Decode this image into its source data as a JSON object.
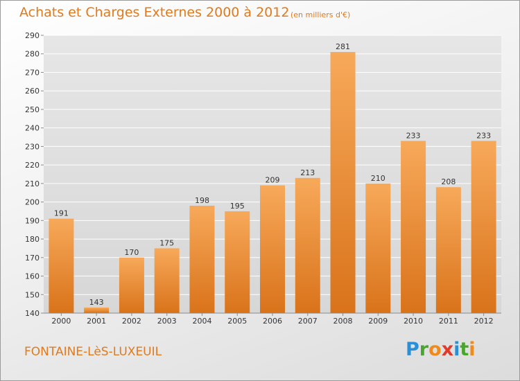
{
  "title": "Achats et Charges Externes 2000 à 2012",
  "subtitle": "(en milliers d'€)",
  "town": "FONTAINE-LèS-LUXEUIL",
  "logo": {
    "text": "Proxiti",
    "letters": [
      {
        "ch": "P",
        "color": "#2a8fd6"
      },
      {
        "ch": "r",
        "color": "#4aa52e"
      },
      {
        "ch": "o",
        "color": "#f08a1a"
      },
      {
        "ch": "x",
        "color": "#e03a2a"
      },
      {
        "ch": "i",
        "color": "#2a8fd6"
      },
      {
        "ch": "t",
        "color": "#4aa52e"
      },
      {
        "ch": "i",
        "color": "#f08a1a"
      }
    ]
  },
  "colors": {
    "accent": "#e07a1c",
    "bar_light": "#f7a95a",
    "bar_dark": "#d9731a",
    "grid": "#ffffff",
    "axis_text": "#333333"
  },
  "chart_data": {
    "type": "bar",
    "categories": [
      "2000",
      "2001",
      "2002",
      "2003",
      "2004",
      "2005",
      "2006",
      "2007",
      "2008",
      "2009",
      "2010",
      "2011",
      "2012"
    ],
    "values": [
      191,
      143,
      170,
      175,
      198,
      195,
      209,
      213,
      281,
      210,
      233,
      208,
      233
    ],
    "ylim": [
      140,
      290
    ],
    "yticks": [
      140,
      150,
      160,
      170,
      180,
      190,
      200,
      210,
      220,
      230,
      240,
      250,
      260,
      270,
      280,
      290
    ],
    "grid": true,
    "xlabel": "",
    "ylabel": ""
  }
}
